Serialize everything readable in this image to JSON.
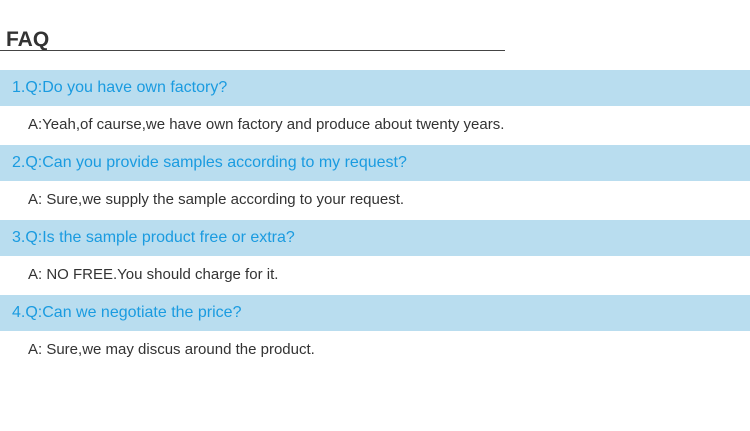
{
  "title": "FAQ",
  "colors": {
    "question_bar": "#b9ddef",
    "question_text": "#1a9be0",
    "answer_text": "#333333"
  },
  "items": [
    {
      "q": "1.Q:Do you have own factory?",
      "a": "A:Yeah,of caurse,we have own factory and produce about twenty years."
    },
    {
      "q": "2.Q:Can you provide samples according to my request?",
      "a": "A: Sure,we supply the sample according to your request."
    },
    {
      "q": "3.Q:Is the sample product free or extra?",
      "a": "A: NO FREE.You should charge for it."
    },
    {
      "q": "4.Q:Can we negotiate the price?",
      "a": "A: Sure,we may discus around the product."
    }
  ]
}
